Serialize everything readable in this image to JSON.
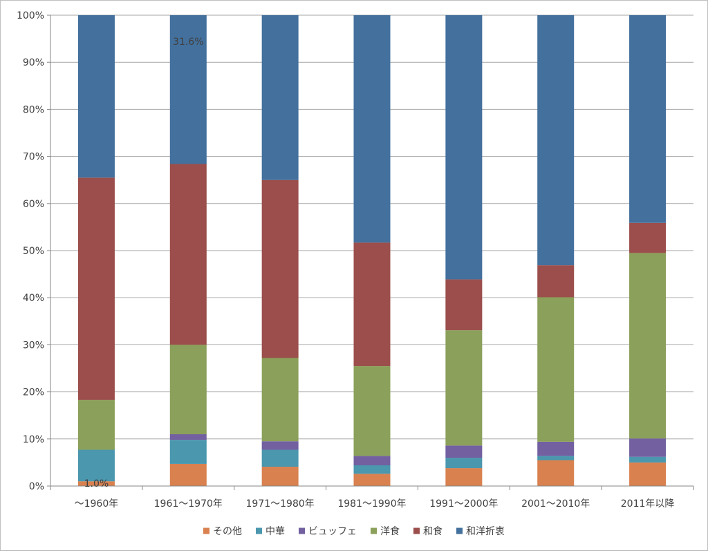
{
  "chart_data": {
    "type": "bar",
    "stacked": true,
    "percent": true,
    "categories": [
      "～1960年",
      "1961～1970年",
      "1971～1980年",
      "1981～1990年",
      "1991～2000年",
      "2001～2010年",
      "2011年以降"
    ],
    "ylim": [
      0,
      100
    ],
    "yticks": [
      "0%",
      "10%",
      "20%",
      "30%",
      "40%",
      "50%",
      "60%",
      "70%",
      "80%",
      "90%",
      "100%"
    ],
    "grid": true,
    "legend_position": "bottom",
    "series": [
      {
        "name": "その他",
        "color": "#d9814f",
        "values": [
          1.0,
          4.7,
          4.1,
          2.6,
          3.8,
          5.5,
          5.0
        ]
      },
      {
        "name": "中華",
        "color": "#4a97ae",
        "values": [
          6.7,
          5.1,
          3.6,
          1.8,
          2.2,
          0.9,
          1.2
        ]
      },
      {
        "name": "ビュッフェ",
        "color": "#7260a0",
        "values": [
          0.0,
          1.2,
          1.8,
          2.0,
          2.6,
          3.0,
          3.9
        ]
      },
      {
        "name": "洋食",
        "color": "#8ba05a",
        "values": [
          10.6,
          19.0,
          17.7,
          19.1,
          24.5,
          30.7,
          39.4
        ]
      },
      {
        "name": "和食",
        "color": "#9b4e4b",
        "values": [
          47.2,
          38.4,
          37.8,
          26.2,
          10.8,
          6.8,
          6.4
        ]
      },
      {
        "name": "和洋折衷",
        "color": "#43709d",
        "values": [
          34.5,
          31.6,
          35.0,
          48.3,
          56.1,
          53.1,
          44.1
        ]
      }
    ],
    "data_labels": [
      {
        "series": 5,
        "category": 1,
        "text": "31.6%"
      },
      {
        "series": 0,
        "category": 0,
        "text": "1.0%"
      }
    ]
  }
}
